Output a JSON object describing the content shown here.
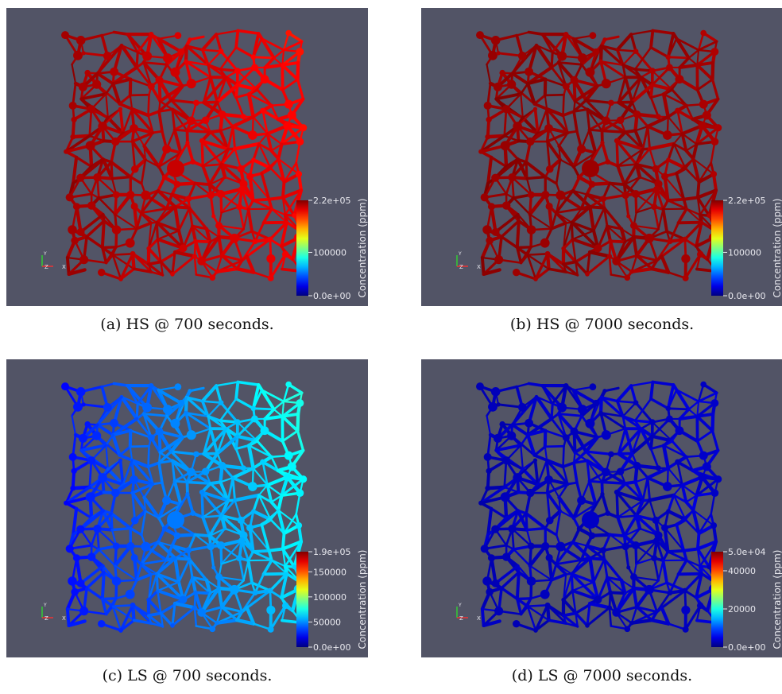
{
  "panels": [
    {
      "caption": "(a) HS @ 700 seconds.",
      "axes": {
        "y": "Y",
        "z": "Z",
        "x": "X"
      },
      "colorbar": {
        "title": "Concentration (ppm)",
        "ticks": [
          {
            "value": 0,
            "label": "0.0e+00"
          },
          100000,
          {
            "value": 220000,
            "label": "2.2e+05"
          }
        ]
      }
    },
    {
      "caption": "(b) HS @ 7000 seconds.",
      "axes": {
        "y": "Y",
        "z": "Z",
        "x": "X"
      },
      "colorbar": {
        "title": "Concentration (ppm)",
        "ticks": [
          {
            "value": 0,
            "label": "0.0e+00"
          },
          100000,
          {
            "value": 220000,
            "label": "2.2e+05"
          }
        ]
      }
    },
    {
      "caption": "(c) LS @ 700 seconds.",
      "axes": {
        "y": "Y",
        "z": "Z",
        "x": "X"
      },
      "colorbar": {
        "title": "Concentration (ppm)",
        "ticks": [
          {
            "value": 0,
            "label": "0.0e+00"
          },
          50000,
          100000,
          150000,
          {
            "value": 190000,
            "label": "1.9e+05"
          }
        ]
      }
    },
    {
      "caption": "(d) LS @ 7000 seconds.",
      "axes": {
        "y": "Y",
        "z": "Z",
        "x": "X"
      },
      "colorbar": {
        "title": "Concentration (ppm)",
        "ticks": [
          {
            "value": 0,
            "label": "0.0e+00"
          },
          20000,
          40000,
          {
            "value": 50000,
            "label": "5.0e+04"
          }
        ]
      }
    }
  ]
}
